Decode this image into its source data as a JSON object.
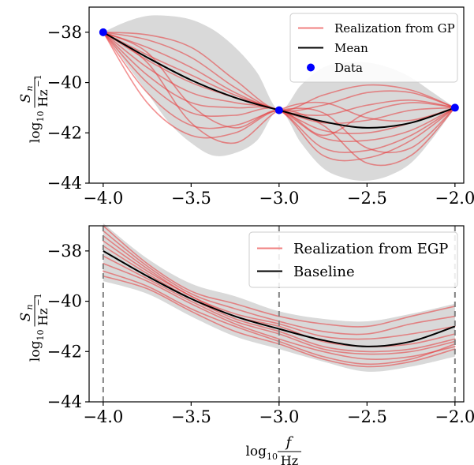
{
  "chart_data": [
    {
      "type": "line",
      "title": "",
      "xlim": [
        -4.08,
        -1.95
      ],
      "ylim": [
        -44,
        -37
      ],
      "xticks": [
        -4.0,
        -3.5,
        -3.0,
        -2.5,
        -2.0
      ],
      "xtick_labels": [
        "−4.0",
        "−3.5",
        "−3.0",
        "−2.5",
        "−2.0"
      ],
      "yticks": [
        -38,
        -40,
        -42,
        -44
      ],
      "ytick_labels": [
        "−38",
        "−40",
        "−42",
        "−44"
      ],
      "ylabel": {
        "prefix": "log",
        "sub": "10",
        "num": "S",
        "num_sub": "n",
        "den": "Hz",
        "den_sup": "−1"
      },
      "legend": {
        "placement": "top-right",
        "entries": [
          {
            "label": "Realization from GP",
            "kind": "line",
            "color": "#f08080"
          },
          {
            "label": "Mean",
            "kind": "line",
            "color": "#000000"
          },
          {
            "label": "Data",
            "kind": "point",
            "color": "#0000ff"
          }
        ]
      },
      "data_points": {
        "x": [
          -4.0,
          -3.0,
          -2.0
        ],
        "y": [
          -38.0,
          -41.1,
          -41.0
        ]
      },
      "mean": {
        "x": [
          -4.0,
          -3.75,
          -3.5,
          -3.25,
          -3.0,
          -2.75,
          -2.5,
          -2.25,
          -2.0
        ],
        "y": [
          -38.0,
          -39.0,
          -39.9,
          -40.6,
          -41.1,
          -41.55,
          -41.8,
          -41.6,
          -41.0
        ]
      },
      "band": {
        "x": [
          -4.0,
          -3.875,
          -3.75,
          -3.625,
          -3.5,
          -3.375,
          -3.25,
          -3.125,
          -3.0,
          -2.875,
          -2.75,
          -2.625,
          -2.5,
          -2.375,
          -2.25,
          -2.125,
          -2.0
        ],
        "upper": [
          -38.0,
          -37.6,
          -37.35,
          -37.35,
          -37.5,
          -37.9,
          -38.6,
          -39.6,
          -41.1,
          -40.1,
          -39.4,
          -39.2,
          -39.2,
          -39.4,
          -39.8,
          -40.4,
          -41.0
        ],
        "lower": [
          -38.0,
          -39.2,
          -40.4,
          -41.6,
          -42.4,
          -42.9,
          -42.8,
          -42.3,
          -41.1,
          -42.4,
          -43.4,
          -43.8,
          -43.9,
          -43.7,
          -43.2,
          -42.2,
          -41.0
        ]
      },
      "realizations": {
        "x": [
          -4.0,
          -3.75,
          -3.5,
          -3.25,
          -3.0,
          -2.75,
          -2.5,
          -2.25,
          -2.0
        ],
        "series": [
          [
            -38.0,
            -38.1,
            -38.6,
            -39.9,
            -41.1,
            -40.5,
            -40.1,
            -40.3,
            -41.0
          ],
          [
            -38.0,
            -38.3,
            -39.0,
            -40.2,
            -41.1,
            -40.9,
            -40.4,
            -40.4,
            -41.0
          ],
          [
            -38.0,
            -38.6,
            -39.4,
            -40.4,
            -41.1,
            -41.3,
            -40.9,
            -40.7,
            -41.0
          ],
          [
            -38.0,
            -38.9,
            -39.7,
            -40.5,
            -41.1,
            -41.6,
            -41.5,
            -41.1,
            -41.0
          ],
          [
            -38.0,
            -39.1,
            -40.0,
            -40.6,
            -41.1,
            -41.9,
            -42.0,
            -41.6,
            -41.0
          ],
          [
            -38.0,
            -39.4,
            -40.4,
            -40.8,
            -41.1,
            -42.2,
            -42.3,
            -41.9,
            -41.0
          ],
          [
            -38.0,
            -39.7,
            -40.8,
            -41.0,
            -41.1,
            -42.6,
            -42.7,
            -42.1,
            -41.0
          ],
          [
            -38.0,
            -40.0,
            -41.2,
            -41.3,
            -41.1,
            -42.9,
            -43.0,
            -42.3,
            -41.0
          ],
          [
            -38.0,
            -40.4,
            -41.7,
            -41.7,
            -41.1,
            -41.2,
            -42.6,
            -42.6,
            -41.0
          ],
          [
            -38.0,
            -40.8,
            -42.1,
            -42.0,
            -41.1,
            -41.7,
            -43.2,
            -42.9,
            -41.0
          ],
          [
            -38.0,
            -39.2,
            -41.6,
            -42.4,
            -41.1,
            -40.8,
            -41.4,
            -41.5,
            -41.0
          ],
          [
            -38.0,
            -38.8,
            -40.9,
            -41.8,
            -41.1,
            -42.1,
            -41.2,
            -40.8,
            -41.0
          ]
        ]
      }
    },
    {
      "type": "line",
      "title": "",
      "xlim": [
        -4.08,
        -1.95
      ],
      "ylim": [
        -44,
        -37
      ],
      "xticks": [
        -4.0,
        -3.5,
        -3.0,
        -2.5,
        -2.0
      ],
      "xtick_labels": [
        "−4.0",
        "−3.5",
        "−3.0",
        "−2.5",
        "−2.0"
      ],
      "yticks": [
        -38,
        -40,
        -42,
        -44
      ],
      "ytick_labels": [
        "−38",
        "−40",
        "−42",
        "−44"
      ],
      "ylabel": {
        "prefix": "log",
        "sub": "10",
        "num": "S",
        "num_sub": "n",
        "den": "Hz",
        "den_sup": "−1"
      },
      "xlabel": {
        "prefix": "log",
        "sub": "10",
        "num": "f",
        "den": "Hz"
      },
      "vlines": [
        -4.0,
        -3.0,
        -2.0
      ],
      "legend": {
        "placement": "top-right",
        "entries": [
          {
            "label": "Realization from EGP",
            "kind": "line",
            "color": "#f08080"
          },
          {
            "label": "Baseline",
            "kind": "line",
            "color": "#000000"
          }
        ]
      },
      "baseline": {
        "x": [
          -4.0,
          -3.75,
          -3.5,
          -3.25,
          -3.0,
          -2.75,
          -2.5,
          -2.25,
          -2.0
        ],
        "y": [
          -38.0,
          -39.0,
          -39.9,
          -40.6,
          -41.1,
          -41.55,
          -41.8,
          -41.6,
          -41.0
        ]
      },
      "band": {
        "x": [
          -4.0,
          -3.75,
          -3.5,
          -3.25,
          -3.0,
          -2.75,
          -2.5,
          -2.25,
          -2.0
        ],
        "upper": [
          -36.9,
          -38.3,
          -39.3,
          -39.8,
          -40.4,
          -40.7,
          -40.8,
          -40.5,
          -40.1
        ],
        "lower": [
          -39.2,
          -39.7,
          -40.6,
          -41.4,
          -41.9,
          -42.4,
          -42.8,
          -42.6,
          -42.2
        ]
      },
      "realizations": {
        "x": [
          -4.0,
          -3.75,
          -3.5,
          -3.25,
          -3.0,
          -2.75,
          -2.5,
          -2.25,
          -2.0
        ],
        "series": [
          [
            -37.0,
            -38.5,
            -39.6,
            -40.1,
            -40.6,
            -40.9,
            -41.0,
            -40.6,
            -40.2
          ],
          [
            -37.2,
            -38.6,
            -39.7,
            -40.3,
            -40.8,
            -41.2,
            -41.3,
            -40.9,
            -40.6
          ],
          [
            -37.4,
            -38.7,
            -39.8,
            -40.5,
            -40.9,
            -41.4,
            -41.5,
            -41.3,
            -41.0
          ],
          [
            -37.6,
            -38.8,
            -39.8,
            -40.6,
            -41.0,
            -41.6,
            -41.8,
            -41.7,
            -41.3
          ],
          [
            -37.8,
            -38.9,
            -39.9,
            -40.7,
            -41.2,
            -41.8,
            -42.0,
            -41.9,
            -41.5
          ],
          [
            -38.2,
            -39.1,
            -40.0,
            -40.8,
            -41.3,
            -41.9,
            -42.1,
            -42.0,
            -41.6
          ],
          [
            -38.5,
            -39.2,
            -40.1,
            -40.9,
            -41.5,
            -42.0,
            -42.3,
            -42.2,
            -41.8
          ],
          [
            -38.8,
            -39.4,
            -40.3,
            -41.0,
            -41.6,
            -42.2,
            -42.5,
            -42.3,
            -41.7
          ],
          [
            -39.0,
            -39.5,
            -40.4,
            -41.2,
            -41.7,
            -42.3,
            -42.6,
            -42.4,
            -41.9
          ]
        ]
      }
    }
  ]
}
